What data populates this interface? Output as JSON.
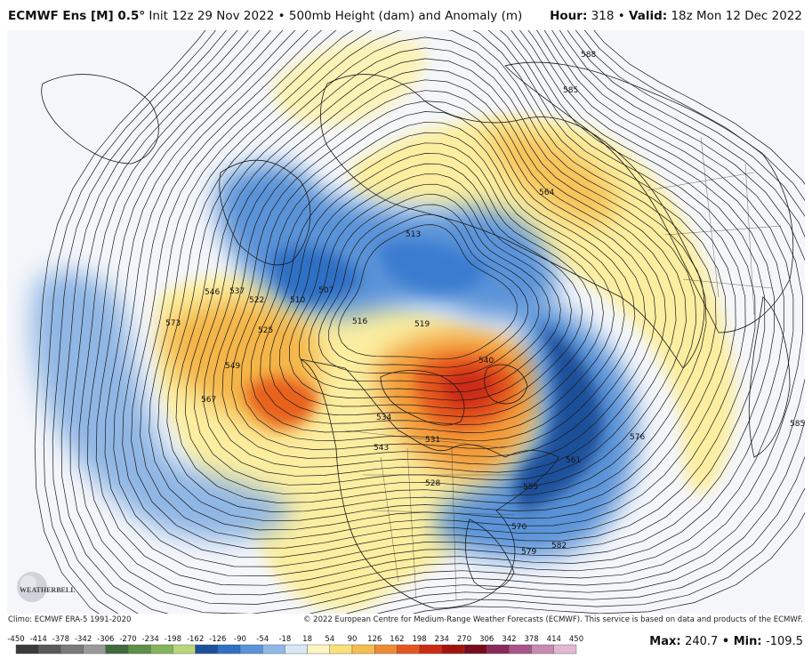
{
  "header": {
    "model": "ECMWF Ens [M] 0.5°",
    "init": "Init 12z 29 Nov 2022",
    "sep": "•",
    "product": "500mb Height (dam) and Anomaly (m)",
    "hour_label": "Hour:",
    "hour_value": "318",
    "valid_label": "Valid:",
    "valid_value": "18z Mon 12 Dec 2022"
  },
  "footer": {
    "climo": "Climo: ECMWF ERA-5 1991-2020",
    "copyright": "© 2022 European Centre for Medium-Range Weather Forecasts (ECMWF). This service is based on data and products of the ECMWF."
  },
  "logo": {
    "text": "WEATHERBELL"
  },
  "colorbar": {
    "labels": [
      "-450",
      "-414",
      "-378",
      "-342",
      "-306",
      "-270",
      "-234",
      "-198",
      "-162",
      "-126",
      "-90",
      "-54",
      "-18",
      "18",
      "54",
      "90",
      "126",
      "162",
      "198",
      "234",
      "270",
      "306",
      "342",
      "378",
      "414",
      "450"
    ],
    "colors": [
      "#3a3a3a",
      "#5a5a5a",
      "#7a7a7a",
      "#9a9a9a",
      "#3f6b3f",
      "#5b8f4a",
      "#86b45a",
      "#b7d77a",
      "#1e4f9a",
      "#2f6fc4",
      "#5a93d8",
      "#8fb8e6",
      "#d9e8f7",
      "#fdf5c2",
      "#f8e07a",
      "#f5bd4f",
      "#ef8a34",
      "#e4561e",
      "#cc2a12",
      "#a3120e",
      "#7a0a1e",
      "#8a2a5a",
      "#a8558a",
      "#c88ab0",
      "#e0b8d0"
    ]
  },
  "maxmin": {
    "max_label": "Max:",
    "max_value": "240.7",
    "sep": "•",
    "min_label": "Min:",
    "min_value": "-109.5"
  },
  "contour_labels": [
    "588",
    "585",
    "564",
    "513",
    "507",
    "510",
    "516",
    "519",
    "540",
    "546",
    "537",
    "522",
    "525",
    "573",
    "549",
    "567",
    "534",
    "543",
    "561",
    "555",
    "570",
    "579",
    "582",
    "576",
    "585",
    "528",
    "531"
  ]
}
